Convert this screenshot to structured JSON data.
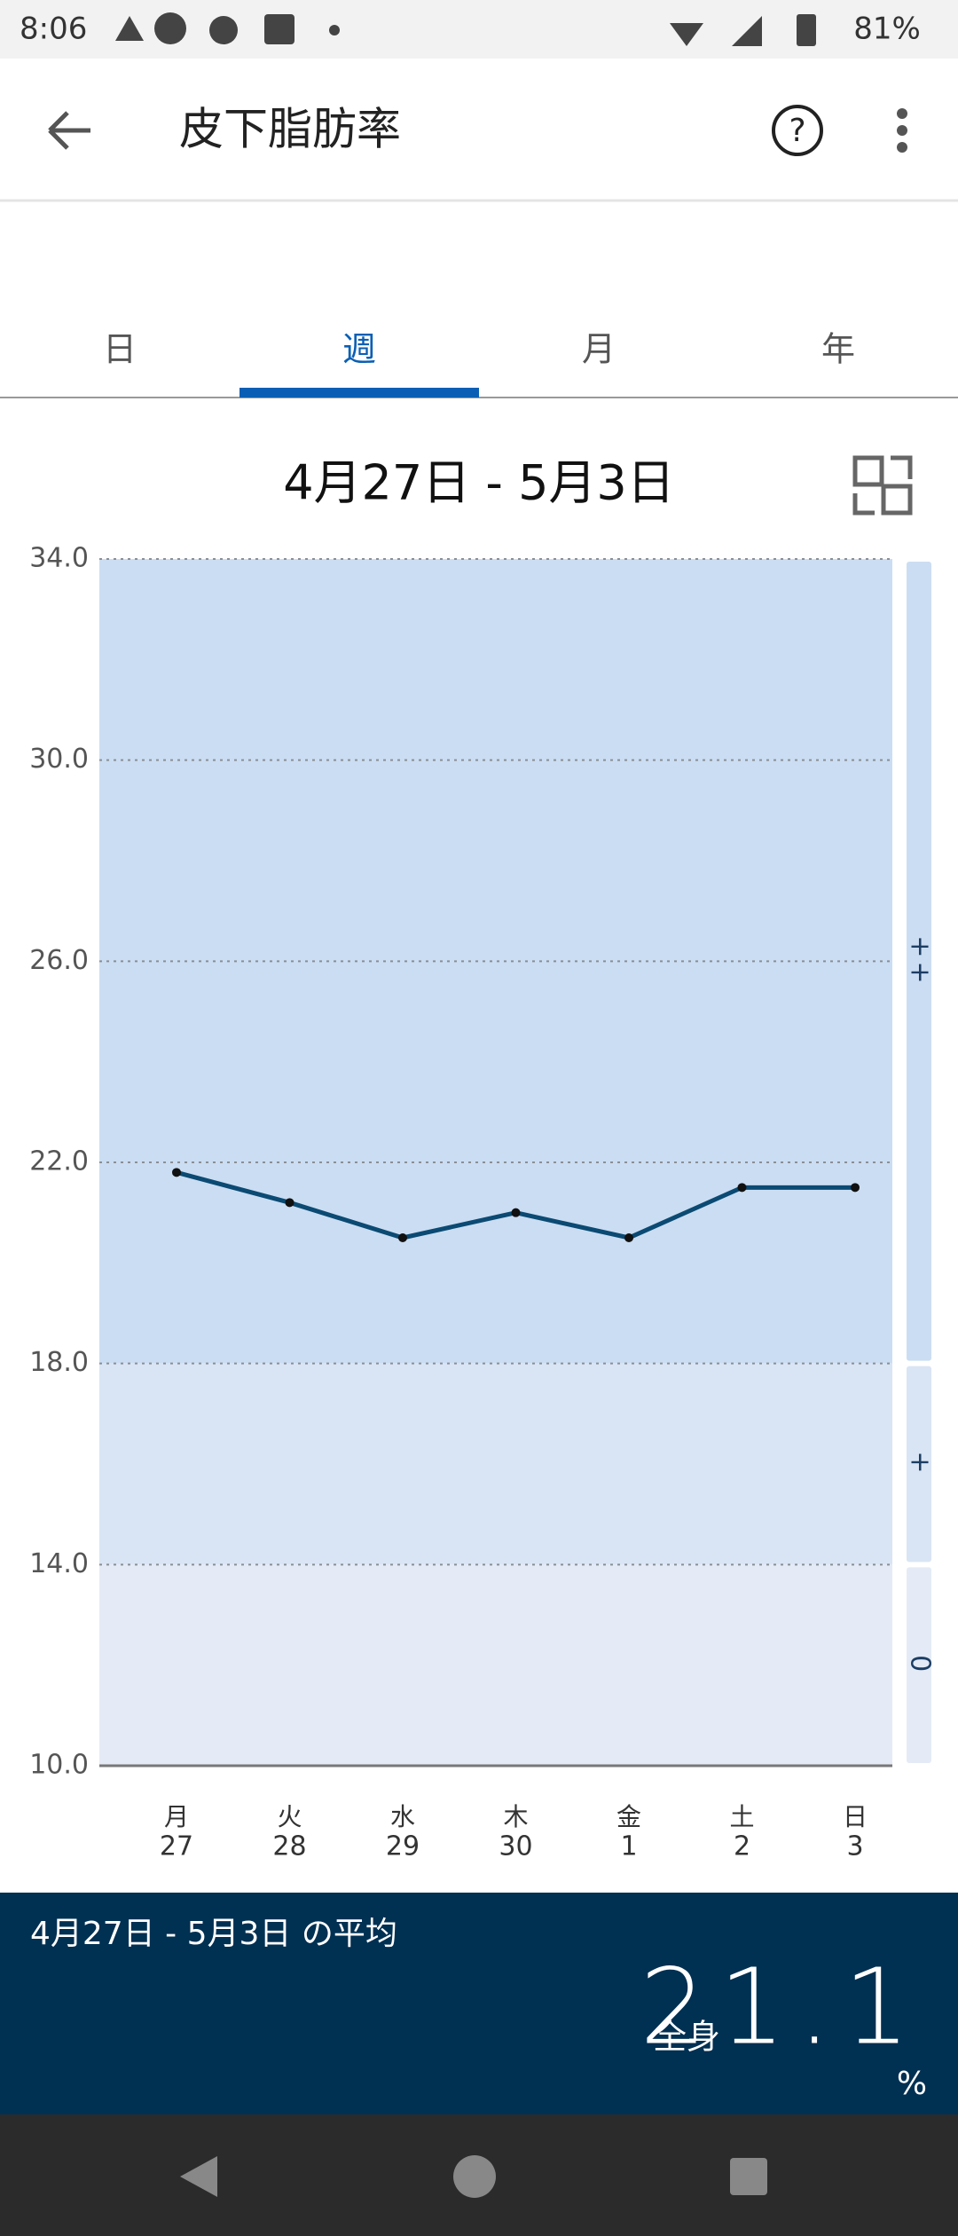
{
  "status_bar": {
    "time": "8:06",
    "battery": "81%"
  },
  "app_bar": {
    "title": "皮下脂肪率"
  },
  "tabs": [
    "日",
    "週",
    "月",
    "年"
  ],
  "chart_data": {
    "type": "line",
    "title": "4月27日 - 5月3日",
    "categories": [
      [
        "月",
        "27"
      ],
      [
        "火",
        "28"
      ],
      [
        "水",
        "29"
      ],
      [
        "木",
        "30"
      ],
      [
        "金",
        "1"
      ],
      [
        "土",
        "2"
      ],
      [
        "日",
        "3"
      ]
    ],
    "values": [
      21.8,
      21.2,
      20.5,
      21.0,
      20.5,
      21.5,
      21.5
    ],
    "color": "#0b4a73",
    "ylim": [
      10,
      34
    ],
    "yticks": [
      {
        "value": 10,
        "label": "10.0"
      },
      {
        "value": 14,
        "label": "14.0"
      },
      {
        "value": 18,
        "label": "18.0"
      },
      {
        "value": 22,
        "label": "22.0"
      },
      {
        "value": 26,
        "label": "26.0"
      },
      {
        "value": 30,
        "label": "30.0"
      },
      {
        "value": 34,
        "label": "34.0"
      }
    ],
    "grid": true,
    "zones": [
      {
        "from": 10,
        "to": 14,
        "label": "0",
        "color": "#e4ebf6"
      },
      {
        "from": 14,
        "to": 18,
        "label": "+",
        "color": "#d9e5f4"
      },
      {
        "from": 18,
        "to": 34,
        "label": "++",
        "color": "#cbddf2"
      }
    ]
  },
  "summary": {
    "caption": "4月27日 - 5月3日 の平均",
    "part": "全身",
    "value": "21.1",
    "unit": "%"
  }
}
